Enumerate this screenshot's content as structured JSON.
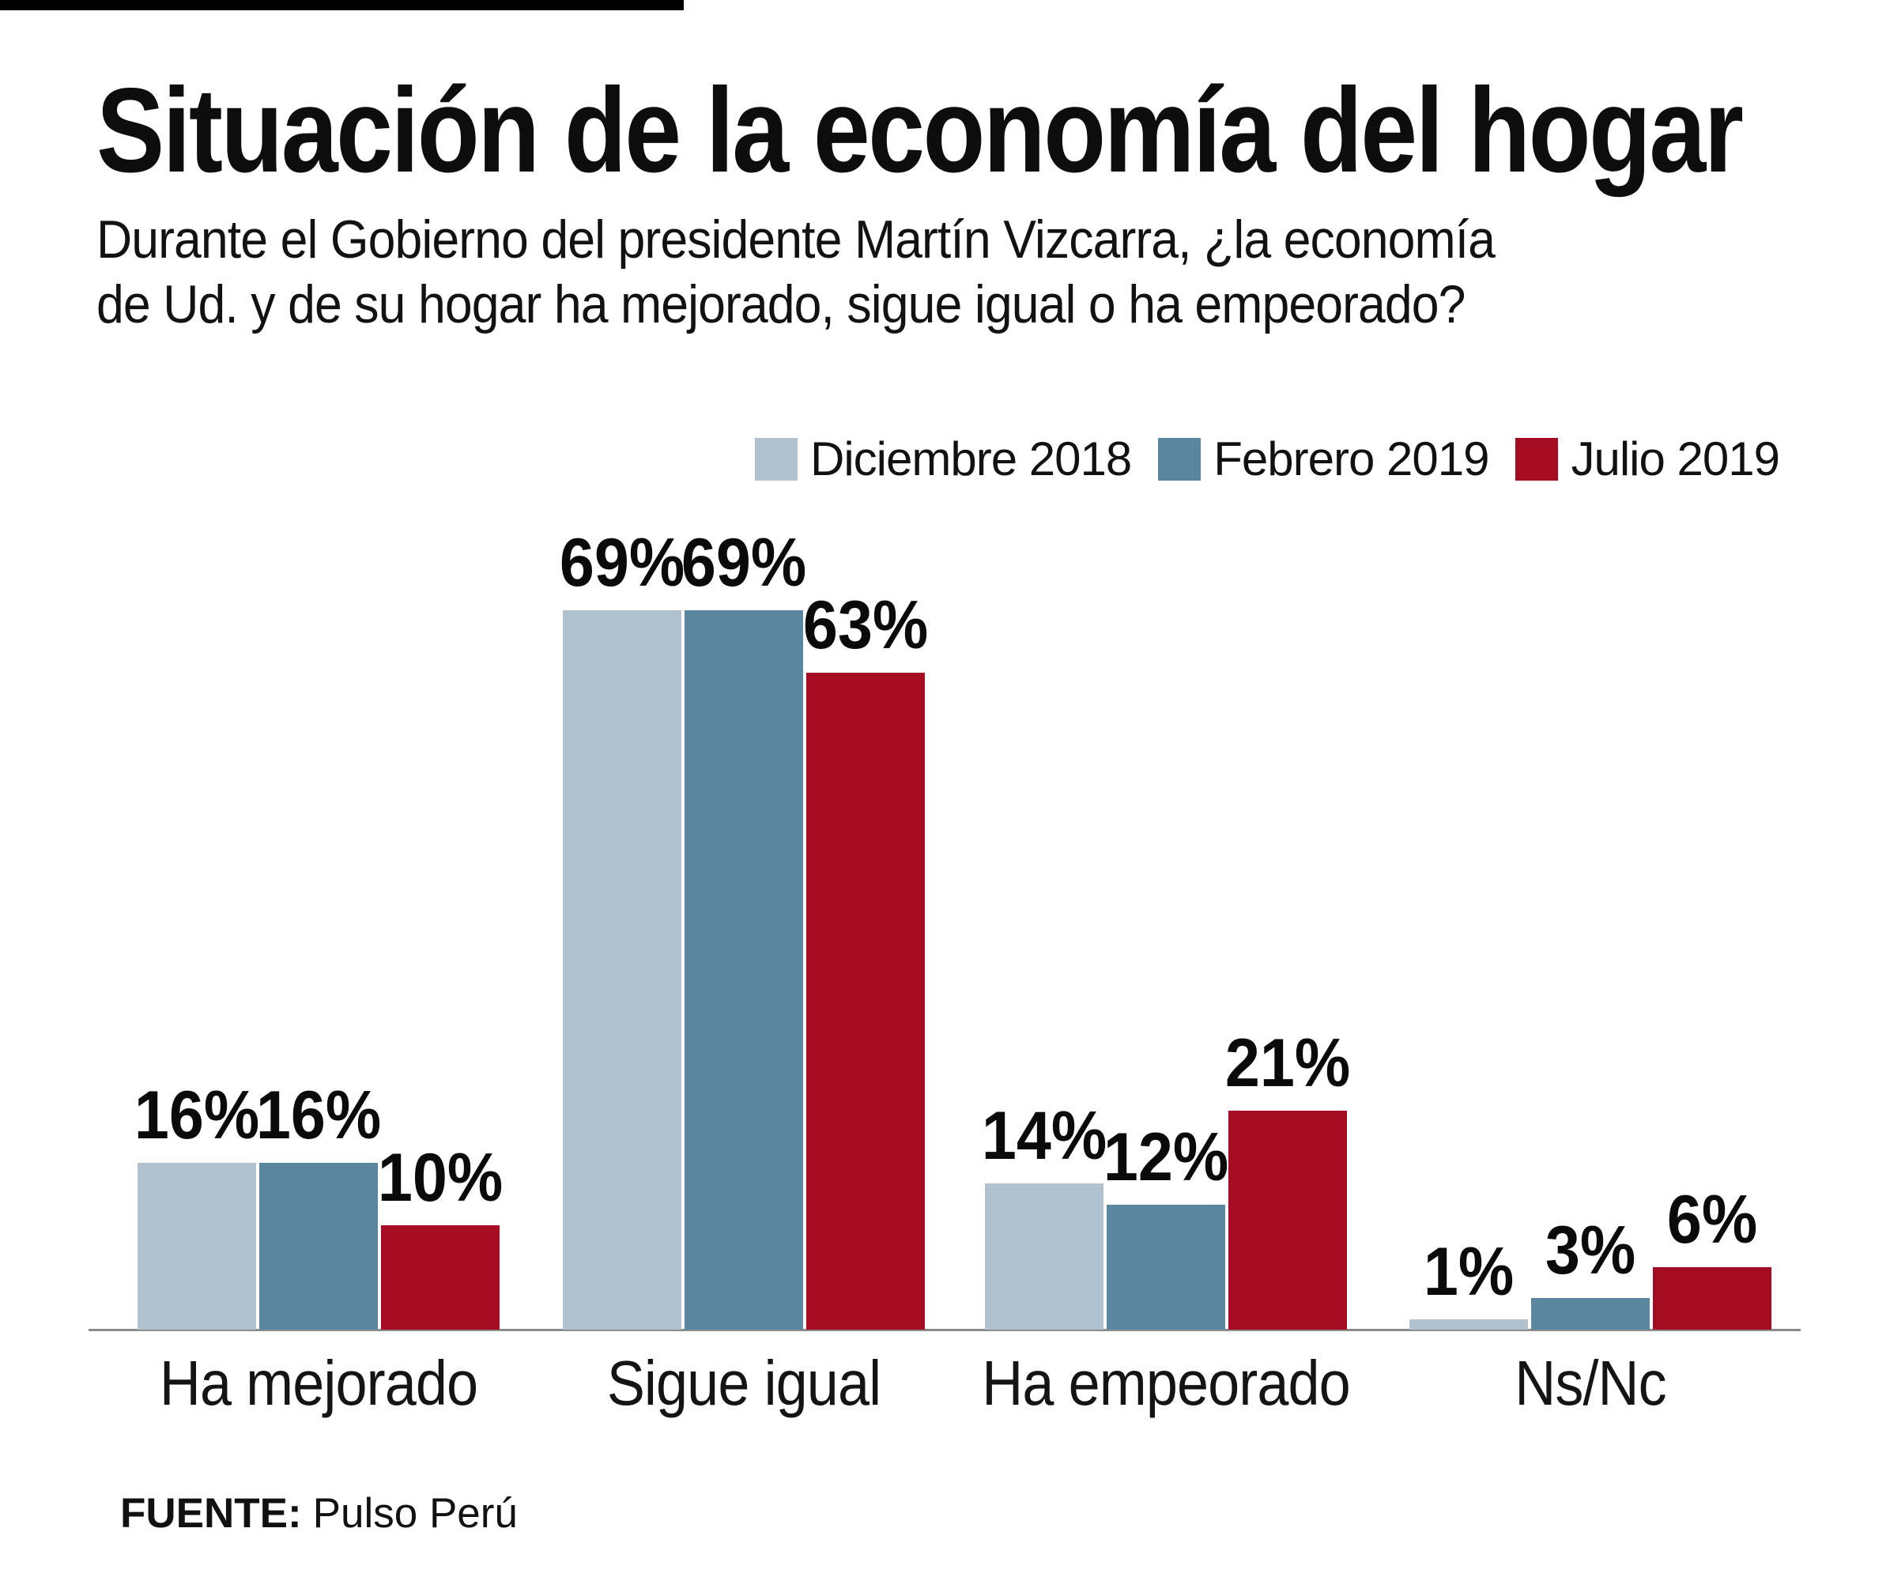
{
  "page": {
    "title": "Situación de la economía del hogar",
    "subtitle_line1": "Durante el Gobierno del presidente Martín Vizcarra, ¿la economía",
    "subtitle_line2": "de Ud. y de su hogar ha mejorado, sigue igual o ha empeorado?",
    "source_label": "FUENTE:",
    "source_value": "Pulso Perú"
  },
  "colors": {
    "axis": "#8c8c8c",
    "text": "#141414"
  },
  "chart_data": {
    "type": "bar",
    "title": "Situación de la economía del hogar",
    "subtitle": "Durante el Gobierno del presidente Martín Vizcarra, ¿la economía de Ud. y de su hogar ha mejorado, sigue igual o ha empeorado?",
    "categories": [
      "Ha mejorado",
      "Sigue igual",
      "Ha empeorado",
      "Ns/Nc"
    ],
    "series": [
      {
        "name": "Diciembre 2018",
        "color": "#b2c1ce",
        "values": [
          16,
          69,
          14,
          1
        ]
      },
      {
        "name": "Febrero 2019",
        "color": "#5b86a0",
        "values": [
          16,
          69,
          12,
          3
        ]
      },
      {
        "name": "Julio 2019",
        "color": "#a30c22",
        "values": [
          10,
          63,
          21,
          6
        ]
      }
    ],
    "value_suffix": "%",
    "data_labels": true,
    "ylim": [
      0,
      74
    ],
    "grid": false,
    "legend_position": "top-right",
    "source": "FUENTE: Pulso Perú"
  }
}
